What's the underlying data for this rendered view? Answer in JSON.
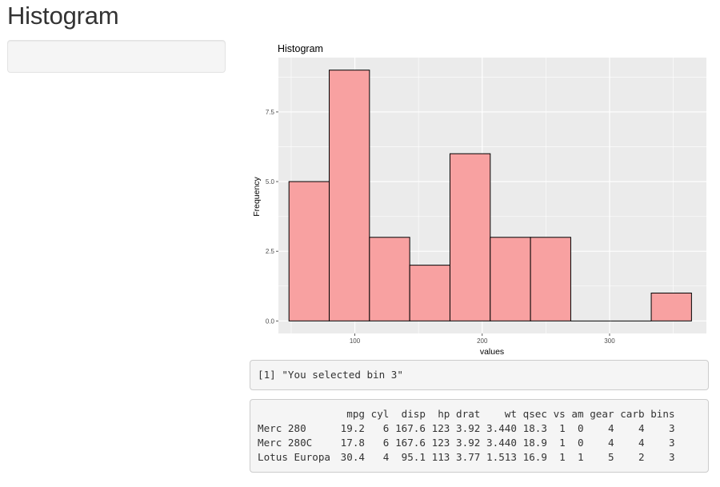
{
  "page": {
    "title": "Histogram"
  },
  "chart_data": {
    "type": "bar",
    "title": "Histogram",
    "xlabel": "values",
    "ylabel": "Frequency",
    "x_ticks": [
      100,
      200,
      300
    ],
    "y_ticks": [
      0.0,
      2.5,
      5.0,
      7.5
    ],
    "y_tick_labels": [
      "0.0",
      "2.5",
      "5.0",
      "7.5"
    ],
    "xlim": [
      40,
      376
    ],
    "ylim": [
      -0.45,
      9.45
    ],
    "bins": [
      {
        "x0": 48.3,
        "x1": 79.9,
        "count": 5
      },
      {
        "x0": 79.9,
        "x1": 111.5,
        "count": 9
      },
      {
        "x0": 111.5,
        "x1": 143.1,
        "count": 3
      },
      {
        "x0": 143.1,
        "x1": 174.7,
        "count": 2
      },
      {
        "x0": 174.7,
        "x1": 206.3,
        "count": 6
      },
      {
        "x0": 206.3,
        "x1": 237.9,
        "count": 3
      },
      {
        "x0": 237.9,
        "x1": 269.5,
        "count": 3
      },
      {
        "x0": 269.5,
        "x1": 301.1,
        "count": 0
      },
      {
        "x0": 301.1,
        "x1": 332.7,
        "count": 0
      },
      {
        "x0": 332.7,
        "x1": 364.3,
        "count": 1
      }
    ],
    "fill": "#f8a1a1",
    "stroke": "#000000",
    "panel_background": "#ebebeb",
    "grid": true
  },
  "output1": {
    "text": "[1] \"You selected bin 3\""
  },
  "table": {
    "header": [
      "mpg",
      "cyl",
      "disp",
      "hp",
      "drat",
      "wt",
      "qsec",
      "vs",
      "am",
      "gear",
      "carb",
      "bins"
    ],
    "rows": [
      {
        "name": "Merc 280",
        "values": [
          "19.2",
          "6",
          "167.6",
          "123",
          "3.92",
          "3.440",
          "18.3",
          "1",
          "0",
          "4",
          "4",
          "3"
        ]
      },
      {
        "name": "Merc 280C",
        "values": [
          "17.8",
          "6",
          "167.6",
          "123",
          "3.92",
          "3.440",
          "18.9",
          "1",
          "0",
          "4",
          "4",
          "3"
        ]
      },
      {
        "name": "Lotus Europa",
        "values": [
          "30.4",
          "4",
          "95.1",
          "113",
          "3.77",
          "1.513",
          "16.9",
          "1",
          "1",
          "5",
          "2",
          "3"
        ]
      }
    ]
  }
}
